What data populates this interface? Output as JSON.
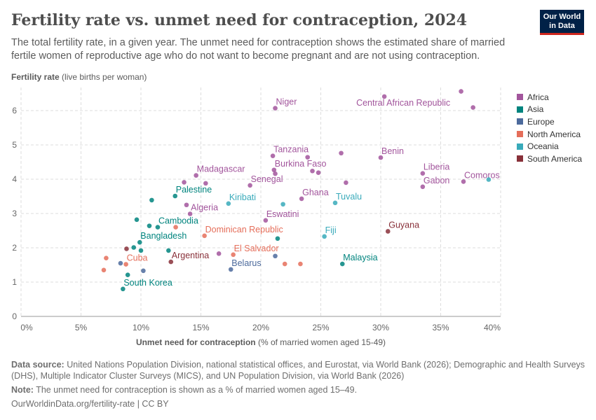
{
  "header": {
    "title": "Fertility rate vs. unmet need for contraception, 2024",
    "subtitle": "The total fertility rate, in a given year. The unmet need for contraception shows the estimated share of married fertile women of reproductive age who do not want to become pregnant and are not using contraception.",
    "logo_line1": "Our World",
    "logo_line2": "in Data"
  },
  "footer": {
    "source_label": "Data source:",
    "source_text": "United Nations Population Division, national statistical offices, and Eurostat, via World Bank (2026); Demographic and Health Surveys (DHS), Multiple Indicator Cluster Surveys (MICS), and UN Population Division, via World Bank (2026)",
    "note_label": "Note:",
    "note_text": "The unmet need for contraception is shown as a % of married women aged 15–49.",
    "credit": "OurWorldinData.org/fertility-rate | CC BY"
  },
  "chart_data": {
    "type": "scatter",
    "title": "Fertility rate vs. unmet need for contraception, 2024",
    "xlabel_bold": "Unmet need for contraception",
    "xlabel_rest": "(% of married women aged 15-49)",
    "ylabel_bold": "Fertility rate",
    "ylabel_rest": "(live births per woman)",
    "xlim": [
      0,
      40
    ],
    "ylim": [
      0,
      6.6
    ],
    "x_ticks": [
      "0%",
      "5%",
      "10%",
      "15%",
      "20%",
      "25%",
      "30%",
      "35%",
      "40%"
    ],
    "x_tick_values": [
      0,
      5,
      10,
      15,
      20,
      25,
      30,
      35,
      40
    ],
    "y_ticks": [
      "0",
      "1",
      "2",
      "3",
      "4",
      "5",
      "6"
    ],
    "y_tick_values": [
      0,
      1,
      2,
      3,
      4,
      5,
      6
    ],
    "grid": true,
    "legend_position": "right",
    "legend": [
      {
        "name": "Africa",
        "color": "#a2559c"
      },
      {
        "name": "Asia",
        "color": "#00847e"
      },
      {
        "name": "Europe",
        "color": "#4c6a9c"
      },
      {
        "name": "North America",
        "color": "#e56e5a"
      },
      {
        "name": "Oceania",
        "color": "#38aaba"
      },
      {
        "name": "South America",
        "color": "#883039"
      }
    ],
    "points": [
      {
        "label": "Niger",
        "region": "Africa",
        "x": 21.2,
        "y": 6.07
      },
      {
        "label": "Central African Republic",
        "region": "Africa",
        "x": 30.3,
        "y": 6.41
      },
      {
        "label": "",
        "region": "Africa",
        "x": 36.7,
        "y": 6.56
      },
      {
        "label": "",
        "region": "Africa",
        "x": 37.7,
        "y": 6.09
      },
      {
        "label": "Tanzania",
        "region": "Africa",
        "x": 21.0,
        "y": 4.68
      },
      {
        "label": "",
        "region": "Africa",
        "x": 26.7,
        "y": 4.76
      },
      {
        "label": "Benin",
        "region": "Africa",
        "x": 30.0,
        "y": 4.63
      },
      {
        "label": "",
        "region": "Africa",
        "x": 23.9,
        "y": 4.64
      },
      {
        "label": "Burkina Faso",
        "region": "Africa",
        "x": 21.1,
        "y": 4.27
      },
      {
        "label": "",
        "region": "Africa",
        "x": 21.2,
        "y": 4.16
      },
      {
        "label": "",
        "region": "Africa",
        "x": 24.3,
        "y": 4.24
      },
      {
        "label": "",
        "region": "Africa",
        "x": 24.8,
        "y": 4.19
      },
      {
        "label": "Liberia",
        "region": "Africa",
        "x": 33.5,
        "y": 4.17
      },
      {
        "label": "Gabon",
        "region": "Africa",
        "x": 33.5,
        "y": 3.78
      },
      {
        "label": "Comoros",
        "region": "Africa",
        "x": 36.9,
        "y": 3.93
      },
      {
        "label": "",
        "region": "Africa",
        "x": 27.1,
        "y": 3.9
      },
      {
        "label": "Madagascar",
        "region": "Africa",
        "x": 14.6,
        "y": 4.11
      },
      {
        "label": "",
        "region": "Africa",
        "x": 13.6,
        "y": 3.91
      },
      {
        "label": "",
        "region": "Africa",
        "x": 15.4,
        "y": 3.88
      },
      {
        "label": "Senegal",
        "region": "Africa",
        "x": 19.1,
        "y": 3.82
      },
      {
        "label": "Ghana",
        "region": "Africa",
        "x": 23.4,
        "y": 3.43
      },
      {
        "label": "",
        "region": "Africa",
        "x": 13.8,
        "y": 3.25
      },
      {
        "label": "Algeria",
        "region": "Africa",
        "x": 14.1,
        "y": 2.99
      },
      {
        "label": "Eswatini",
        "region": "Africa",
        "x": 20.4,
        "y": 2.8
      },
      {
        "label": "",
        "region": "Africa",
        "x": 16.5,
        "y": 1.83
      },
      {
        "label": "Palestine",
        "region": "Asia",
        "x": 12.85,
        "y": 3.51
      },
      {
        "label": "",
        "region": "Asia",
        "x": 10.9,
        "y": 3.39
      },
      {
        "label": "",
        "region": "Asia",
        "x": 9.65,
        "y": 2.82
      },
      {
        "label": "",
        "region": "Asia",
        "x": 10.7,
        "y": 2.64
      },
      {
        "label": "Cambodia",
        "region": "Asia",
        "x": 11.4,
        "y": 2.6
      },
      {
        "label": "",
        "region": "Asia",
        "x": 21.4,
        "y": 2.27
      },
      {
        "label": "Bangladesh",
        "region": "Asia",
        "x": 9.9,
        "y": 2.16
      },
      {
        "label": "",
        "region": "Asia",
        "x": 9.4,
        "y": 2.01
      },
      {
        "label": "",
        "region": "Asia",
        "x": 10.0,
        "y": 1.92
      },
      {
        "label": "",
        "region": "Asia",
        "x": 12.3,
        "y": 1.92
      },
      {
        "label": "",
        "region": "Asia",
        "x": 8.9,
        "y": 1.21
      },
      {
        "label": "South Korea",
        "region": "Asia",
        "x": 8.5,
        "y": 0.8
      },
      {
        "label": "Malaysia",
        "region": "Asia",
        "x": 26.8,
        "y": 1.53
      },
      {
        "label": "",
        "region": "Europe",
        "x": 21.2,
        "y": 1.76
      },
      {
        "label": "",
        "region": "Europe",
        "x": 8.3,
        "y": 1.55
      },
      {
        "label": "",
        "region": "Europe",
        "x": 10.2,
        "y": 1.33
      },
      {
        "label": "Belarus",
        "region": "Europe",
        "x": 17.5,
        "y": 1.37
      },
      {
        "label": "",
        "region": "North America",
        "x": 12.9,
        "y": 2.6
      },
      {
        "label": "Dominican Republic",
        "region": "North America",
        "x": 15.3,
        "y": 2.35
      },
      {
        "label": "El Salvador",
        "region": "North America",
        "x": 17.7,
        "y": 1.8
      },
      {
        "label": "",
        "region": "North America",
        "x": 7.1,
        "y": 1.7
      },
      {
        "label": "Cuba",
        "region": "North America",
        "x": 8.75,
        "y": 1.52
      },
      {
        "label": "",
        "region": "North America",
        "x": 22.0,
        "y": 1.53
      },
      {
        "label": "",
        "region": "North America",
        "x": 23.3,
        "y": 1.53
      },
      {
        "label": "",
        "region": "North America",
        "x": 6.9,
        "y": 1.35
      },
      {
        "label": "Kiribati",
        "region": "Oceania",
        "x": 17.3,
        "y": 3.29
      },
      {
        "label": "",
        "region": "Oceania",
        "x": 21.85,
        "y": 3.27
      },
      {
        "label": "Tuvalu",
        "region": "Oceania",
        "x": 26.2,
        "y": 3.31
      },
      {
        "label": "Fiji",
        "region": "Oceania",
        "x": 25.3,
        "y": 2.33
      },
      {
        "label": "",
        "region": "Oceania",
        "x": 39.0,
        "y": 3.99
      },
      {
        "label": "Guyana",
        "region": "South America",
        "x": 30.6,
        "y": 2.48
      },
      {
        "label": "",
        "region": "South America",
        "x": 8.8,
        "y": 1.97
      },
      {
        "label": "Argentina",
        "region": "South America",
        "x": 12.5,
        "y": 1.59
      }
    ]
  }
}
